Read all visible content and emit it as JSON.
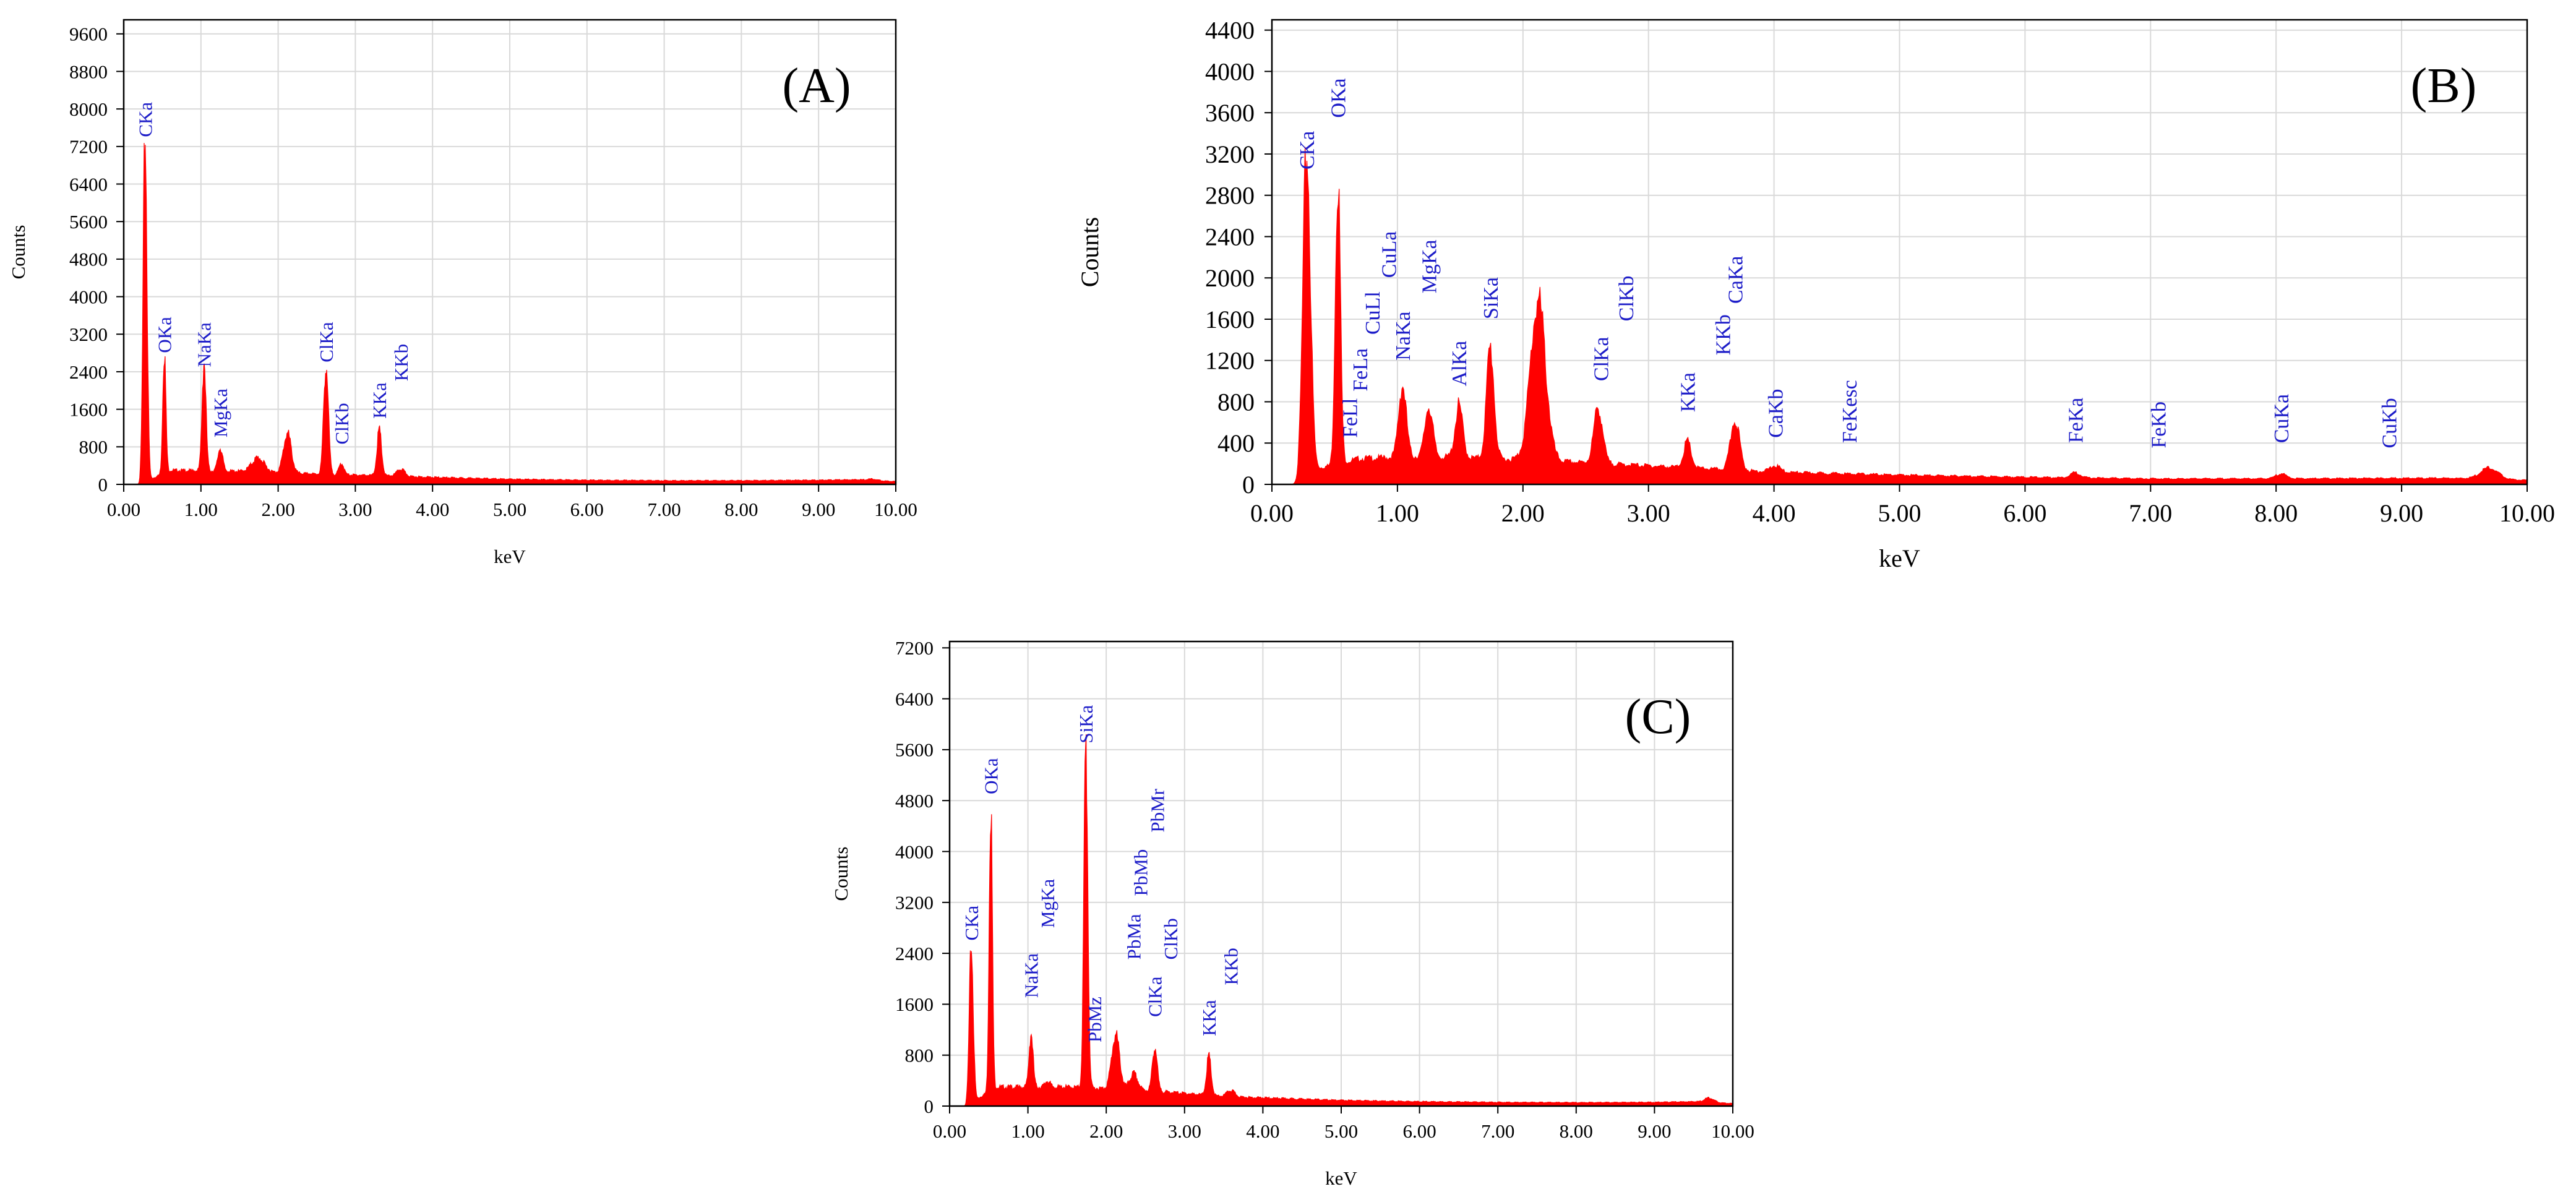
{
  "colors": {
    "spectrum": "#ff0000",
    "peak_label": "#1c1cc8",
    "grid": "#d9d9d9",
    "axis": "#000000"
  },
  "chart_data": [
    {
      "type": "area",
      "title": "(A)",
      "xlabel": "keV",
      "ylabel": "Counts",
      "xlim": [
        0,
        10
      ],
      "ylim": [
        0,
        9900
      ],
      "xticks": [
        "0.00",
        "1.00",
        "2.00",
        "3.00",
        "4.00",
        "5.00",
        "6.00",
        "7.00",
        "8.00",
        "9.00",
        "10.00"
      ],
      "yticks": [
        0,
        800,
        1600,
        2400,
        3200,
        4000,
        4800,
        5600,
        6400,
        7200,
        8000,
        8800,
        9600
      ],
      "baseline": [
        [
          0.2,
          0
        ],
        [
          0.6,
          300
        ],
        [
          1.5,
          280
        ],
        [
          2.5,
          220
        ],
        [
          3.5,
          180
        ],
        [
          4.0,
          150
        ],
        [
          5.0,
          110
        ],
        [
          6.0,
          90
        ],
        [
          7.0,
          80
        ],
        [
          8.0,
          80
        ],
        [
          9.0,
          90
        ],
        [
          9.5,
          100
        ],
        [
          10.0,
          60
        ]
      ],
      "peaks": [
        {
          "x": 0.277,
          "y": 7400,
          "w": 0.025
        },
        {
          "x": 0.525,
          "y": 2650,
          "w": 0.02
        },
        {
          "x": 1.04,
          "y": 2350,
          "w": 0.025
        },
        {
          "x": 1.25,
          "y": 500,
          "w": 0.03
        },
        {
          "x": 1.74,
          "y": 300,
          "w": 0.08
        },
        {
          "x": 2.12,
          "y": 850,
          "w": 0.05
        },
        {
          "x": 2.62,
          "y": 2350,
          "w": 0.03
        },
        {
          "x": 2.82,
          "y": 250,
          "w": 0.03
        },
        {
          "x": 3.31,
          "y": 950,
          "w": 0.03
        },
        {
          "x": 3.59,
          "y": 150,
          "w": 0.05
        },
        {
          "x": 9.7,
          "y": 30,
          "w": 0.06
        }
      ],
      "peak_labels": [
        {
          "text": "CKa",
          "x": 0.277,
          "y": 7400
        },
        {
          "text": "OKa",
          "x": 0.525,
          "y": 2800
        },
        {
          "text": "NaKa",
          "x": 1.04,
          "y": 2500
        },
        {
          "text": "MgKa",
          "x": 1.25,
          "y": 1000
        },
        {
          "text": "ClKa",
          "x": 2.62,
          "y": 2600
        },
        {
          "text": "ClKb",
          "x": 2.82,
          "y": 850
        },
        {
          "text": "KKa",
          "x": 3.31,
          "y": 1400
        },
        {
          "text": "KKb",
          "x": 3.59,
          "y": 2200
        }
      ]
    },
    {
      "type": "area",
      "title": "(B)",
      "xlabel": "keV",
      "ylabel": "Counts",
      "xlim": [
        0,
        10
      ],
      "ylim": [
        0,
        4500
      ],
      "xticks": [
        "0.00",
        "1.00",
        "2.00",
        "3.00",
        "4.00",
        "5.00",
        "6.00",
        "7.00",
        "8.00",
        "9.00",
        "10.00"
      ],
      "yticks": [
        0,
        400,
        800,
        1200,
        1600,
        2000,
        2400,
        2800,
        3200,
        3600,
        4000,
        4400
      ],
      "baseline": [
        [
          0.2,
          0
        ],
        [
          0.35,
          150
        ],
        [
          0.7,
          250
        ],
        [
          1.2,
          270
        ],
        [
          2.0,
          240
        ],
        [
          3.0,
          180
        ],
        [
          4.0,
          120
        ],
        [
          5.0,
          90
        ],
        [
          6.0,
          70
        ],
        [
          7.0,
          55
        ],
        [
          8.0,
          55
        ],
        [
          9.0,
          60
        ],
        [
          9.4,
          60
        ],
        [
          10.0,
          40
        ]
      ],
      "peaks": [
        {
          "x": 0.277,
          "y": 3150,
          "w": 0.03
        },
        {
          "x": 0.525,
          "y": 2850,
          "w": 0.02
        },
        {
          "x": 1.04,
          "y": 700,
          "w": 0.03
        },
        {
          "x": 1.25,
          "y": 500,
          "w": 0.03
        },
        {
          "x": 1.49,
          "y": 500,
          "w": 0.03
        },
        {
          "x": 1.74,
          "y": 1070,
          "w": 0.03
        },
        {
          "x": 2.12,
          "y": 1550,
          "w": 0.06
        },
        {
          "x": 2.6,
          "y": 540,
          "w": 0.035
        },
        {
          "x": 3.31,
          "y": 250,
          "w": 0.03
        },
        {
          "x": 3.69,
          "y": 500,
          "w": 0.035
        },
        {
          "x": 4.01,
          "y": 60,
          "w": 0.04
        },
        {
          "x": 6.4,
          "y": 50,
          "w": 0.04
        },
        {
          "x": 8.04,
          "y": 50,
          "w": 0.04
        },
        {
          "x": 9.7,
          "y": 110,
          "w": 0.07
        }
      ],
      "peak_labels": [
        {
          "text": "CKa",
          "x": 0.277,
          "y": 3050
        },
        {
          "text": "OKa",
          "x": 0.525,
          "y": 3550
        },
        {
          "text": "FeLl",
          "x": 0.62,
          "y": 450
        },
        {
          "text": "FeLa",
          "x": 0.7,
          "y": 900
        },
        {
          "text": "CuLl",
          "x": 0.8,
          "y": 1450
        },
        {
          "text": "CuLa",
          "x": 0.93,
          "y": 2000
        },
        {
          "text": "NaKa",
          "x": 1.04,
          "y": 1200
        },
        {
          "text": "MgKa",
          "x": 1.25,
          "y": 1850
        },
        {
          "text": "AlKa",
          "x": 1.49,
          "y": 950
        },
        {
          "text": "SiKa",
          "x": 1.74,
          "y": 1600
        },
        {
          "text": "ClKa",
          "x": 2.62,
          "y": 1000
        },
        {
          "text": "ClKb",
          "x": 2.82,
          "y": 1580
        },
        {
          "text": "KKa",
          "x": 3.31,
          "y": 700
        },
        {
          "text": "KKb",
          "x": 3.59,
          "y": 1250
        },
        {
          "text": "CaKa",
          "x": 3.69,
          "y": 1750
        },
        {
          "text": "CaKb",
          "x": 4.01,
          "y": 450
        },
        {
          "text": "FeKesc",
          "x": 4.6,
          "y": 400
        },
        {
          "text": "FeKa",
          "x": 6.4,
          "y": 400
        },
        {
          "text": "FeKb",
          "x": 7.06,
          "y": 350
        },
        {
          "text": "CuKa",
          "x": 8.04,
          "y": 400
        },
        {
          "text": "CuKb",
          "x": 8.9,
          "y": 350
        }
      ]
    },
    {
      "type": "area",
      "title": "(C)",
      "xlabel": "keV",
      "ylabel": "Counts",
      "xlim": [
        0,
        10
      ],
      "ylim": [
        0,
        7300
      ],
      "xticks": [
        "0.00",
        "1.00",
        "2.00",
        "3.00",
        "4.00",
        "5.00",
        "6.00",
        "7.00",
        "8.00",
        "9.00",
        "10.00"
      ],
      "yticks": [
        0,
        800,
        1600,
        2400,
        3200,
        4000,
        4800,
        5600,
        6400,
        7200
      ],
      "baseline": [
        [
          0.2,
          0
        ],
        [
          0.6,
          300
        ],
        [
          1.5,
          300
        ],
        [
          2.5,
          250
        ],
        [
          3.5,
          150
        ],
        [
          4.0,
          130
        ],
        [
          5.0,
          90
        ],
        [
          6.0,
          70
        ],
        [
          7.0,
          60
        ],
        [
          8.0,
          55
        ],
        [
          9.0,
          60
        ],
        [
          9.5,
          70
        ],
        [
          10.0,
          40
        ]
      ],
      "peaks": [
        {
          "x": 0.277,
          "y": 2450,
          "w": 0.025
        },
        {
          "x": 0.525,
          "y": 4650,
          "w": 0.02
        },
        {
          "x": 1.04,
          "y": 850,
          "w": 0.025
        },
        {
          "x": 1.25,
          "y": 100,
          "w": 0.03
        },
        {
          "x": 1.74,
          "y": 5350,
          "w": 0.025
        },
        {
          "x": 2.12,
          "y": 850,
          "w": 0.05
        },
        {
          "x": 2.35,
          "y": 250,
          "w": 0.05
        },
        {
          "x": 2.62,
          "y": 700,
          "w": 0.03
        },
        {
          "x": 3.31,
          "y": 600,
          "w": 0.03
        },
        {
          "x": 3.59,
          "y": 100,
          "w": 0.05
        },
        {
          "x": 9.7,
          "y": 70,
          "w": 0.06
        }
      ],
      "peak_labels": [
        {
          "text": "CKa",
          "x": 0.277,
          "y": 2600
        },
        {
          "text": "OKa",
          "x": 0.525,
          "y": 4900
        },
        {
          "text": "NaKa",
          "x": 1.04,
          "y": 1700
        },
        {
          "text": "MgKa",
          "x": 1.25,
          "y": 2800
        },
        {
          "text": "SiKa",
          "x": 1.74,
          "y": 5700
        },
        {
          "text": "PbMz",
          "x": 1.85,
          "y": 1000
        },
        {
          "text": "PbMa",
          "x": 2.35,
          "y": 2300
        },
        {
          "text": "PbMb",
          "x": 2.44,
          "y": 3300
        },
        {
          "text": "PbMr",
          "x": 2.65,
          "y": 4300
        },
        {
          "text": "ClKa",
          "x": 2.62,
          "y": 1400
        },
        {
          "text": "ClKb",
          "x": 2.82,
          "y": 2300
        },
        {
          "text": "KKa",
          "x": 3.31,
          "y": 1100
        },
        {
          "text": "KKb",
          "x": 3.59,
          "y": 1900
        }
      ]
    }
  ]
}
